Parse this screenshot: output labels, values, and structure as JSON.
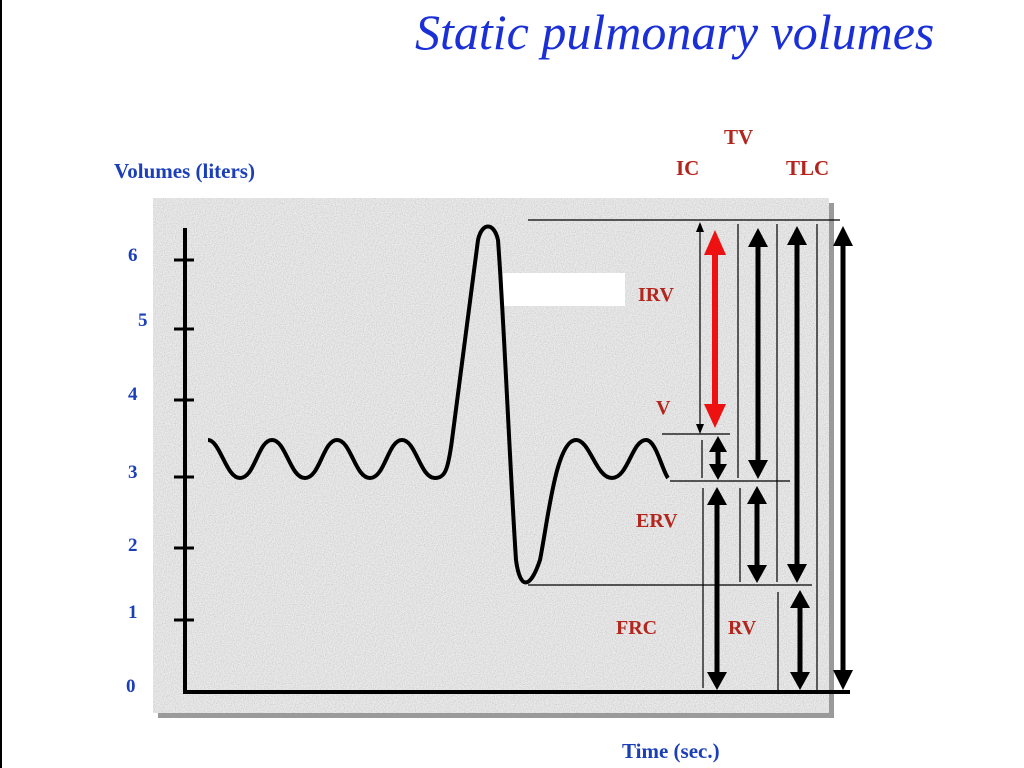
{
  "slide": {
    "title": "Static pulmonary volumes"
  },
  "axes": {
    "y_label": "Volumes (liters)",
    "x_label": "Time (sec.)",
    "y_ticks": [
      "0",
      "1",
      "2",
      "3",
      "4",
      "5",
      "6"
    ]
  },
  "volume_labels": {
    "irv": "IRV",
    "v": "V",
    "erv": "ERV",
    "frc": "FRC",
    "rv": "RV"
  },
  "capacity_labels": {
    "tv": "TV",
    "ic": "IC",
    "tlc": "TLC"
  },
  "colors": {
    "title": "#1a2fd6",
    "axis_labels": "#1b3fb8",
    "volume_labels": "#b3261e",
    "highlight_arrow": "#ee1111",
    "panel": "#ececec",
    "curve": "#000000"
  }
}
